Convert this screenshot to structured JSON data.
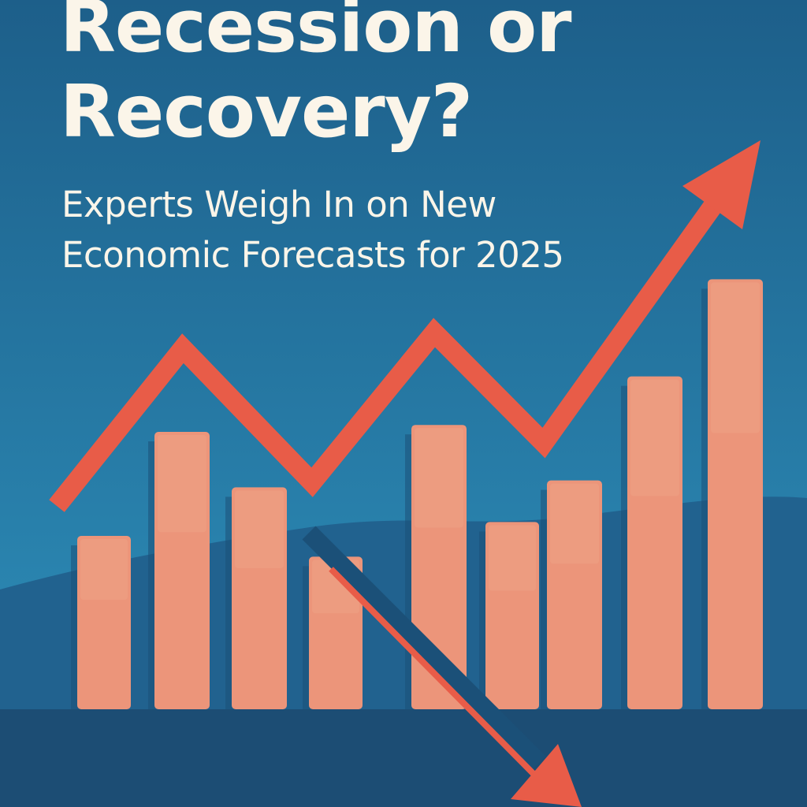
{
  "headline": {
    "line1": "Recession or",
    "line2": "Recovery?"
  },
  "subhead": {
    "line1": "Experts Weigh In on New",
    "line2": "Economic Forecasts for 2025"
  },
  "bars": {
    "relative_heights": [
      0.25,
      0.4,
      0.32,
      0.22,
      0.41,
      0.27,
      0.33,
      0.48,
      0.62
    ]
  },
  "icons": {
    "upward_trend": "trend-up-arrow",
    "downward_trend": "trend-down-arrow"
  },
  "colors": {
    "background_top": "#1d5f8a",
    "background_mid": "#2a85b0",
    "hill": "#21628f",
    "ground": "#1c4d74",
    "bar_fill": "#ec957a",
    "bar_highlight": "#f2a98c",
    "bar_shadow": "#1b5078",
    "arrow": "#e85c48",
    "text": "#fbf5e9"
  }
}
